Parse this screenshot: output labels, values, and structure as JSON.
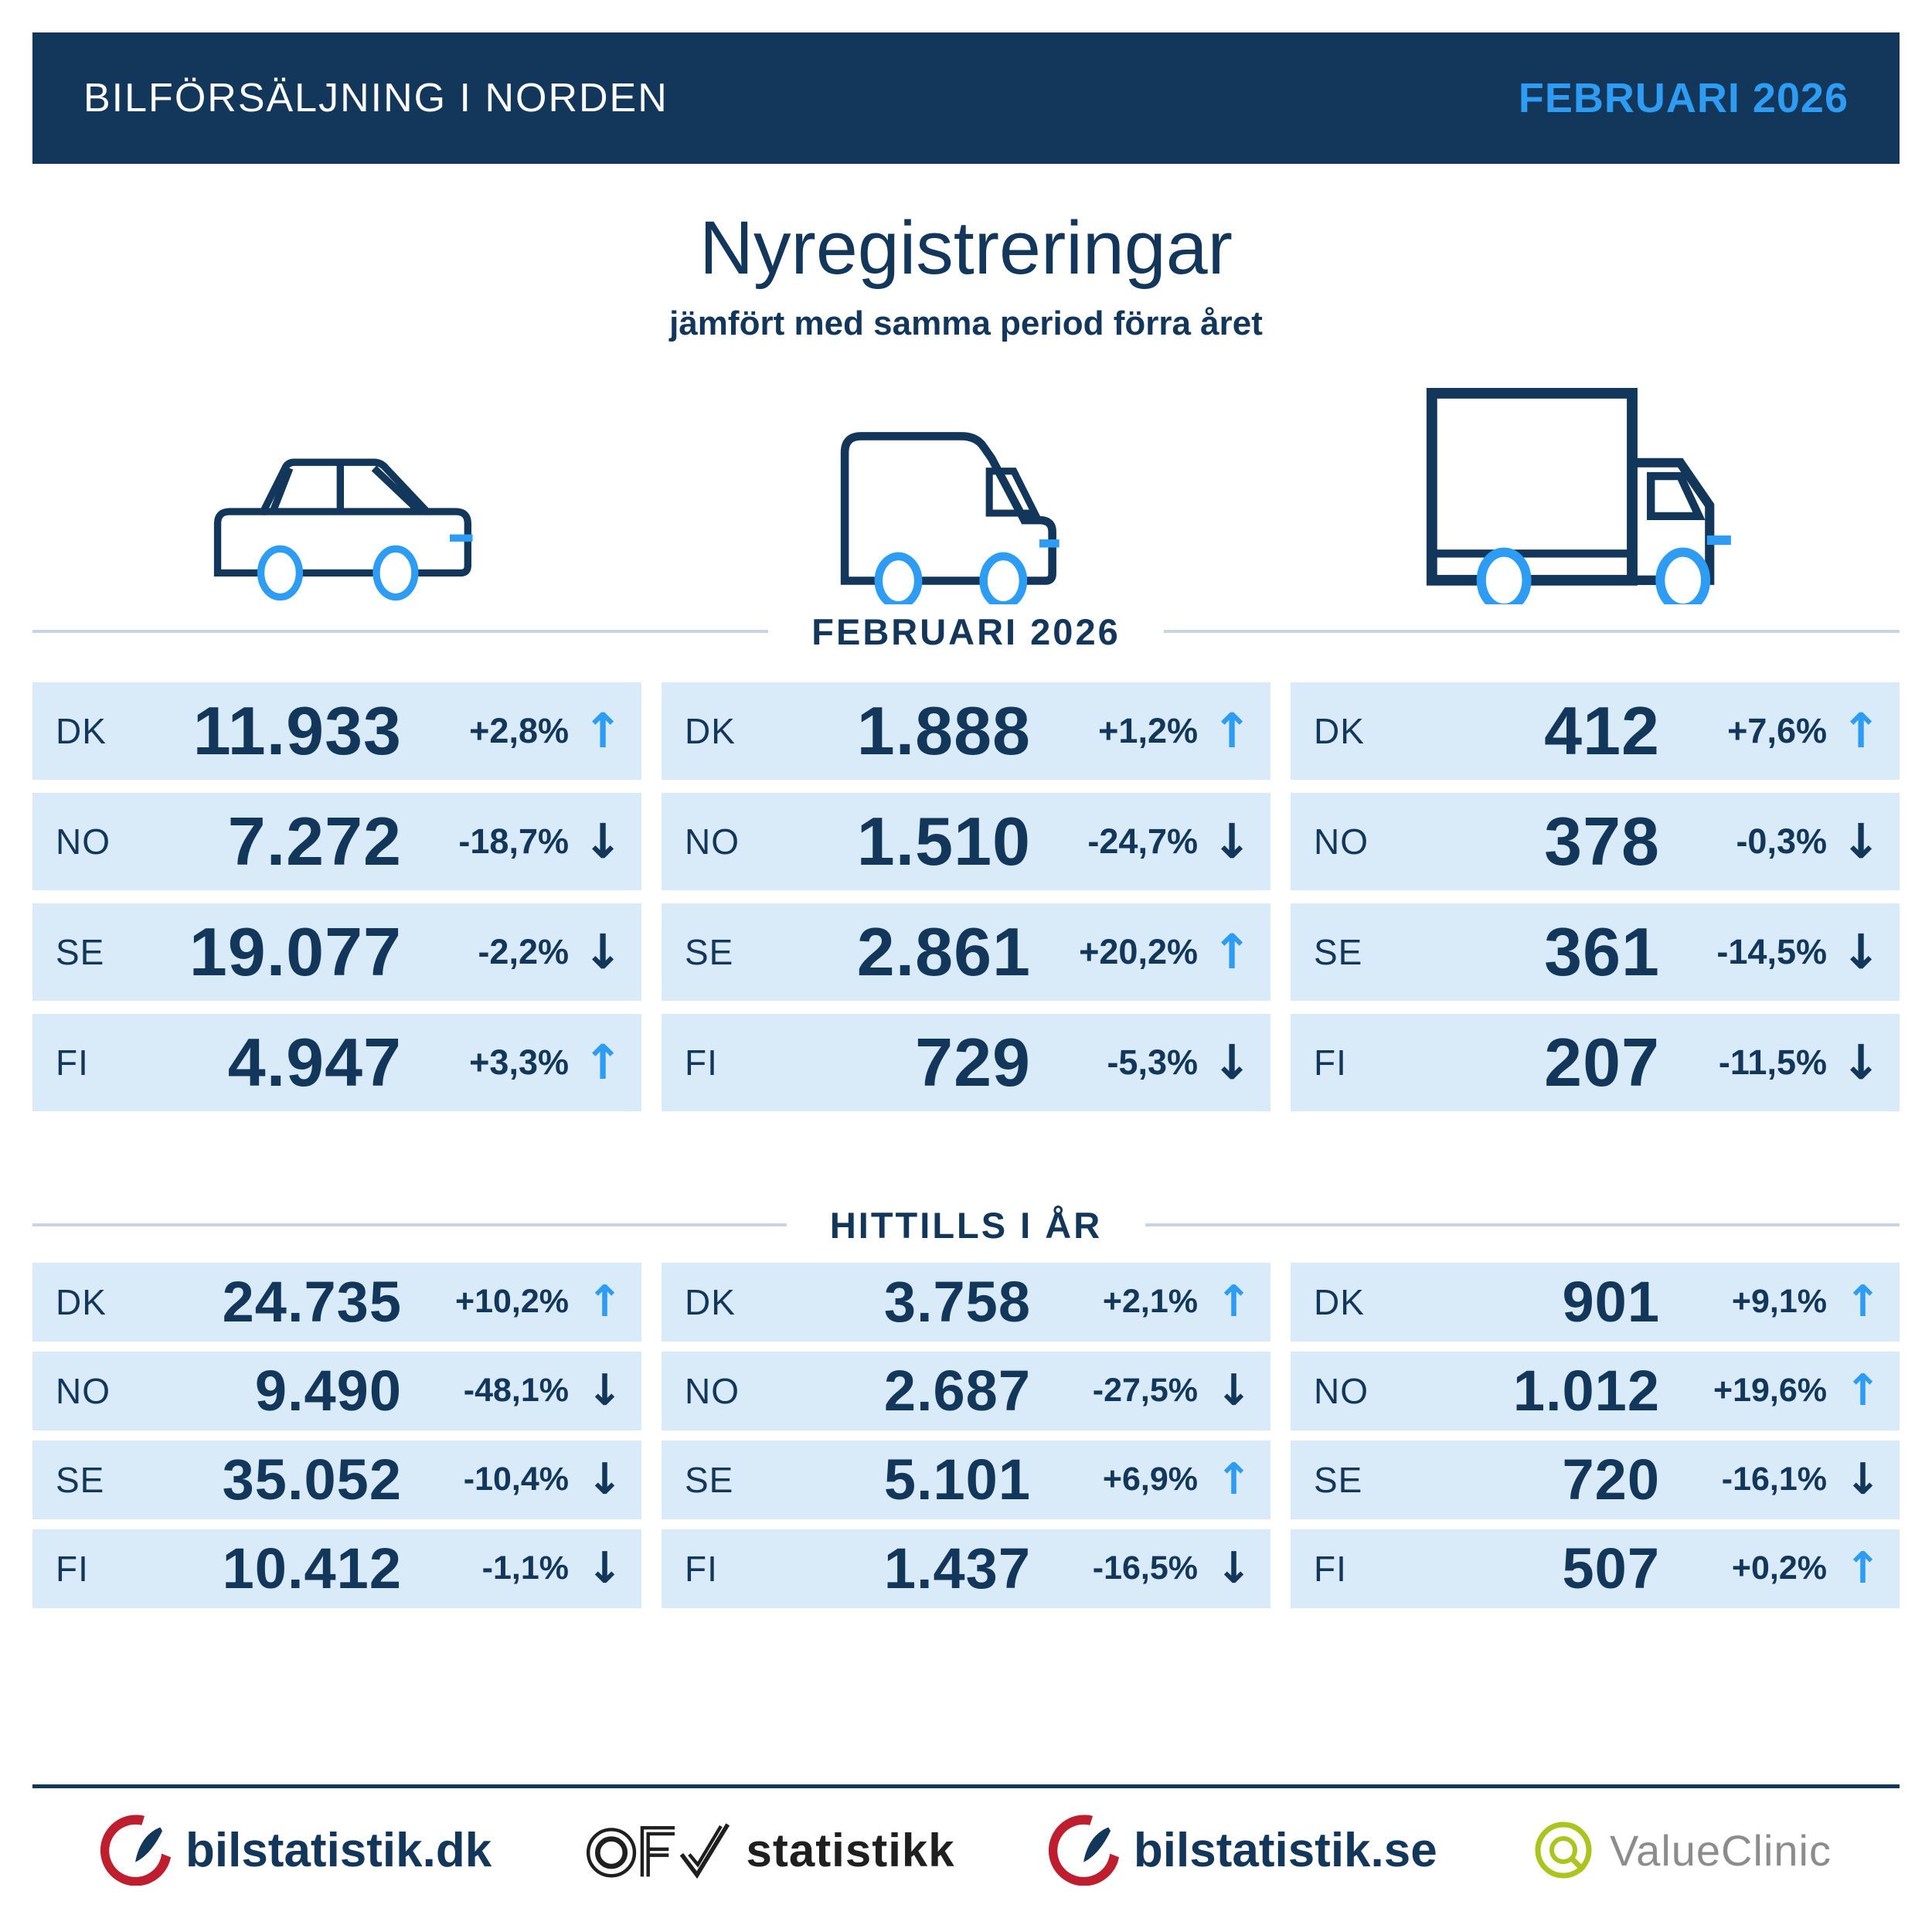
{
  "colors": {
    "navy": "#13365B",
    "accent_blue": "#2D9CF2",
    "row_background": "#D9EAF9",
    "divider_gray_blue": "#C7D4E2",
    "logo_red": "#BE1E2D",
    "valueclinic_green": "#ACC41E",
    "valueclinic_gray": "#8C8C8C"
  },
  "header": {
    "title": "BILFÖRSÄLJNING I NORDEN",
    "period": "FEBRUARI 2026"
  },
  "intro": {
    "title": "Nyregistreringar",
    "subtitle": "jämfört med samma period förra året"
  },
  "icons": {
    "up": "↑",
    "down": "↓",
    "vehicles": [
      "passenger-car-icon",
      "van-icon",
      "truck-icon"
    ]
  },
  "chart_data": {
    "type": "table",
    "title": "Nyregistreringar",
    "subtitle": "jämfört med samma period förra året",
    "period": "FEBRUARI 2026",
    "vehicle_columns": [
      "passenger-car",
      "van",
      "truck"
    ],
    "countries": [
      "DK",
      "NO",
      "SE",
      "FI"
    ],
    "sections": [
      {
        "label": "FEBRUARI 2026",
        "vehicles": [
          {
            "vehicle": "passenger-car",
            "rows": [
              {
                "code": "DK",
                "value": "11.933",
                "change": "+2,8%",
                "direction": "up"
              },
              {
                "code": "NO",
                "value": "7.272",
                "change": "-18,7%",
                "direction": "down"
              },
              {
                "code": "SE",
                "value": "19.077",
                "change": "-2,2%",
                "direction": "down"
              },
              {
                "code": "FI",
                "value": "4.947",
                "change": "+3,3%",
                "direction": "up"
              }
            ]
          },
          {
            "vehicle": "van",
            "rows": [
              {
                "code": "DK",
                "value": "1.888",
                "change": "+1,2%",
                "direction": "up"
              },
              {
                "code": "NO",
                "value": "1.510",
                "change": "-24,7%",
                "direction": "down"
              },
              {
                "code": "SE",
                "value": "2.861",
                "change": "+20,2%",
                "direction": "up"
              },
              {
                "code": "FI",
                "value": "729",
                "change": "-5,3%",
                "direction": "down"
              }
            ]
          },
          {
            "vehicle": "truck",
            "rows": [
              {
                "code": "DK",
                "value": "412",
                "change": "+7,6%",
                "direction": "up"
              },
              {
                "code": "NO",
                "value": "378",
                "change": "-0,3%",
                "direction": "down"
              },
              {
                "code": "SE",
                "value": "361",
                "change": "-14,5%",
                "direction": "down"
              },
              {
                "code": "FI",
                "value": "207",
                "change": "-11,5%",
                "direction": "down"
              }
            ]
          }
        ]
      },
      {
        "label": "HITTILLS I ÅR",
        "vehicles": [
          {
            "vehicle": "passenger-car",
            "rows": [
              {
                "code": "DK",
                "value": "24.735",
                "change": "+10,2%",
                "direction": "up"
              },
              {
                "code": "NO",
                "value": "9.490",
                "change": "-48,1%",
                "direction": "down"
              },
              {
                "code": "SE",
                "value": "35.052",
                "change": "-10,4%",
                "direction": "down"
              },
              {
                "code": "FI",
                "value": "10.412",
                "change": "-1,1%",
                "direction": "down"
              }
            ]
          },
          {
            "vehicle": "van",
            "rows": [
              {
                "code": "DK",
                "value": "3.758",
                "change": "+2,1%",
                "direction": "up"
              },
              {
                "code": "NO",
                "value": "2.687",
                "change": "-27,5%",
                "direction": "down"
              },
              {
                "code": "SE",
                "value": "5.101",
                "change": "+6,9%",
                "direction": "up"
              },
              {
                "code": "FI",
                "value": "1.437",
                "change": "-16,5%",
                "direction": "down"
              }
            ]
          },
          {
            "vehicle": "truck",
            "rows": [
              {
                "code": "DK",
                "value": "901",
                "change": "+9,1%",
                "direction": "up"
              },
              {
                "code": "NO",
                "value": "1.012",
                "change": "+19,6%",
                "direction": "up"
              },
              {
                "code": "SE",
                "value": "720",
                "change": "-16,1%",
                "direction": "down"
              },
              {
                "code": "FI",
                "value": "507",
                "change": "+0,2%",
                "direction": "up"
              }
            ]
          }
        ]
      }
    ]
  },
  "footer": {
    "logos": [
      {
        "name": "bilstatistik-dk",
        "text": "bilstatistik.dk"
      },
      {
        "name": "ofv-statistikk",
        "text": "statistikk"
      },
      {
        "name": "bilstatistik-se",
        "text": "bilstatistik.se"
      },
      {
        "name": "valueclinic",
        "text": "ValueClinic"
      }
    ]
  }
}
